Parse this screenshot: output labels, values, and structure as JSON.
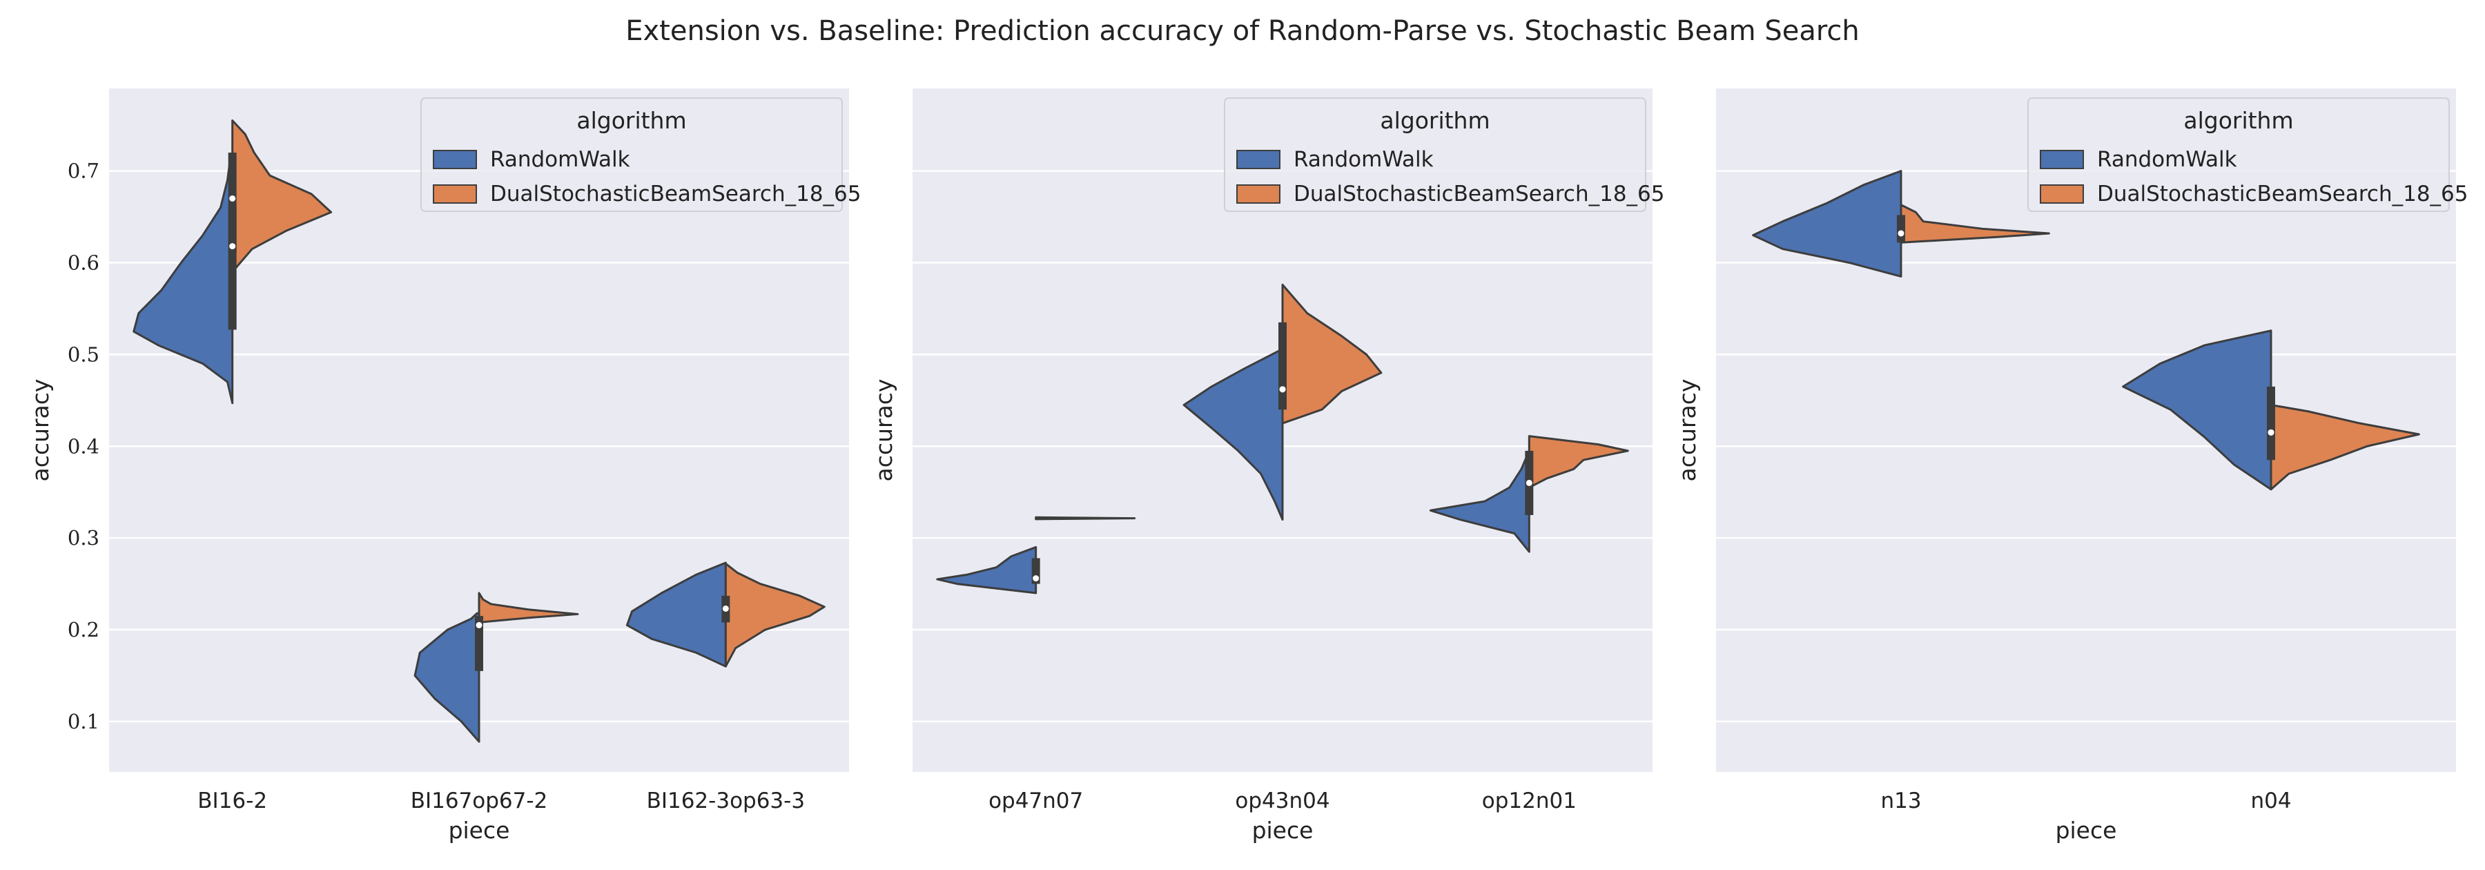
{
  "figure": {
    "title": "Extension vs. Baseline: Prediction accuracy of Random-Parse vs. Stochastic Beam Search"
  },
  "legend": {
    "title": "algorithm",
    "entries": [
      {
        "label": "RandomWalk",
        "color": "#4c72b0"
      },
      {
        "label": "DualStochasticBeamSearch_18_65",
        "color": "#dd8452"
      }
    ]
  },
  "colors": {
    "panel_bg": "#eaeaf2",
    "grid": "#ffffff",
    "outline": "#3d3d3d",
    "box": "#3d3d3d"
  },
  "chart_data": [
    {
      "type": "violin",
      "split": true,
      "xlabel": "piece",
      "ylabel": "accuracy",
      "ylim": [
        0.045,
        0.79
      ],
      "yticks": [
        0.1,
        0.2,
        0.3,
        0.4,
        0.5,
        0.6,
        0.7
      ],
      "categories": [
        "BI16-2",
        "BI167op67-2",
        "BI162-3op63-3"
      ],
      "series": [
        {
          "name": "RandomWalk",
          "violins": [
            {
              "profile": [
                [
                  0.447,
                  0
                ],
                [
                  0.47,
                  0.05
                ],
                [
                  0.49,
                  0.3
                ],
                [
                  0.51,
                  0.75
                ],
                [
                  0.525,
                  1.0
                ],
                [
                  0.545,
                  0.95
                ],
                [
                  0.57,
                  0.72
                ],
                [
                  0.6,
                  0.52
                ],
                [
                  0.63,
                  0.3
                ],
                [
                  0.66,
                  0.12
                ],
                [
                  0.69,
                  0.05
                ],
                [
                  0.715,
                  0.02
                ]
              ],
              "box": [
                0.527,
                0.66
              ],
              "median": 0.618
            },
            {
              "profile": [
                [
                  0.078,
                  0
                ],
                [
                  0.1,
                  0.18
                ],
                [
                  0.125,
                  0.45
                ],
                [
                  0.15,
                  0.65
                ],
                [
                  0.175,
                  0.6
                ],
                [
                  0.2,
                  0.32
                ],
                [
                  0.212,
                  0.08
                ],
                [
                  0.218,
                  0.02
                ]
              ],
              "box": [
                0.155,
                0.215
              ],
              "median": 0.205
            },
            {
              "profile": [
                [
                  0.16,
                  0
                ],
                [
                  0.175,
                  0.3
                ],
                [
                  0.19,
                  0.75
                ],
                [
                  0.205,
                  1.0
                ],
                [
                  0.22,
                  0.95
                ],
                [
                  0.24,
                  0.65
                ],
                [
                  0.26,
                  0.3
                ],
                [
                  0.273,
                  0
                ]
              ],
              "box": [
                0.208,
                0.237
              ],
              "median": 0.223
            }
          ]
        },
        {
          "name": "DualStochasticBeamSearch_18_65",
          "violins": [
            {
              "profile": [
                [
                  0.59,
                  0
                ],
                [
                  0.615,
                  0.2
                ],
                [
                  0.635,
                  0.55
                ],
                [
                  0.655,
                  1.0
                ],
                [
                  0.675,
                  0.8
                ],
                [
                  0.695,
                  0.38
                ],
                [
                  0.72,
                  0.22
                ],
                [
                  0.74,
                  0.13
                ],
                [
                  0.755,
                  0
                ]
              ],
              "box": [
                0.61,
                0.72
              ],
              "median": 0.67
            },
            {
              "profile": [
                [
                  0.208,
                  0
                ],
                [
                  0.213,
                  0.5
                ],
                [
                  0.217,
                  1.0
                ],
                [
                  0.222,
                  0.5
                ],
                [
                  0.228,
                  0.12
                ],
                [
                  0.233,
                  0.04
                ],
                [
                  0.24,
                  0
                ]
              ],
              "box": null,
              "median": null
            },
            {
              "profile": [
                [
                  0.16,
                  0
                ],
                [
                  0.18,
                  0.1
                ],
                [
                  0.2,
                  0.4
                ],
                [
                  0.215,
                  0.85
                ],
                [
                  0.225,
                  1.0
                ],
                [
                  0.237,
                  0.75
                ],
                [
                  0.25,
                  0.35
                ],
                [
                  0.262,
                  0.12
                ],
                [
                  0.272,
                  0
                ]
              ],
              "box": null,
              "median": null
            }
          ]
        }
      ]
    },
    {
      "type": "violin",
      "split": true,
      "xlabel": "piece",
      "ylabel": "accuracy",
      "ylim": [
        0.045,
        0.79
      ],
      "yticks": [
        0.1,
        0.2,
        0.3,
        0.4,
        0.5,
        0.6,
        0.7
      ],
      "categories": [
        "op47n07",
        "op43n04",
        "op12n01"
      ],
      "series": [
        {
          "name": "RandomWalk",
          "violins": [
            {
              "profile": [
                [
                  0.24,
                  0
                ],
                [
                  0.245,
                  0.4
                ],
                [
                  0.25,
                  0.8
                ],
                [
                  0.255,
                  1.0
                ],
                [
                  0.26,
                  0.7
                ],
                [
                  0.268,
                  0.4
                ],
                [
                  0.28,
                  0.25
                ],
                [
                  0.29,
                  0
                ]
              ],
              "box": [
                0.25,
                0.278
              ],
              "median": 0.256
            },
            {
              "profile": [
                [
                  0.32,
                  0
                ],
                [
                  0.34,
                  0.08
                ],
                [
                  0.37,
                  0.22
                ],
                [
                  0.395,
                  0.45
                ],
                [
                  0.42,
                  0.72
                ],
                [
                  0.445,
                  1.0
                ],
                [
                  0.465,
                  0.72
                ],
                [
                  0.485,
                  0.38
                ],
                [
                  0.506,
                  0
                ]
              ],
              "box": [
                0.44,
                0.48
              ],
              "median": 0.462
            },
            {
              "profile": [
                [
                  0.285,
                  0
                ],
                [
                  0.305,
                  0.15
                ],
                [
                  0.32,
                  0.7
                ],
                [
                  0.33,
                  1.0
                ],
                [
                  0.34,
                  0.45
                ],
                [
                  0.355,
                  0.2
                ],
                [
                  0.375,
                  0.08
                ],
                [
                  0.395,
                  0
                ]
              ],
              "box": [
                0.325,
                0.395
              ],
              "median": 0.36
            }
          ]
        },
        {
          "name": "DualStochasticBeamSearch_18_65",
          "violins": [
            {
              "profile": [
                [
                  0.3205,
                  0
                ],
                [
                  0.3215,
                  1.0
                ],
                [
                  0.3225,
                  0
                ]
              ],
              "box": null,
              "median": null
            },
            {
              "profile": [
                [
                  0.425,
                  0
                ],
                [
                  0.44,
                  0.4
                ],
                [
                  0.46,
                  0.6
                ],
                [
                  0.48,
                  1.0
                ],
                [
                  0.5,
                  0.85
                ],
                [
                  0.52,
                  0.6
                ],
                [
                  0.545,
                  0.25
                ],
                [
                  0.576,
                  0
                ]
              ],
              "box": [
                0.44,
                0.535
              ],
              "median": 0.462
            },
            {
              "profile": [
                [
                  0.355,
                  0
                ],
                [
                  0.365,
                  0.18
                ],
                [
                  0.375,
                  0.45
                ],
                [
                  0.385,
                  0.55
                ],
                [
                  0.395,
                  1.0
                ],
                [
                  0.402,
                  0.7
                ],
                [
                  0.411,
                  0
                ]
              ],
              "box": null,
              "median": null
            }
          ]
        }
      ]
    },
    {
      "type": "violin",
      "split": true,
      "xlabel": "piece",
      "ylabel": "accuracy",
      "ylim": [
        0.045,
        0.79
      ],
      "yticks": [
        0.1,
        0.2,
        0.3,
        0.4,
        0.5,
        0.6,
        0.7
      ],
      "categories": [
        "n13",
        "n04"
      ],
      "series": [
        {
          "name": "RandomWalk",
          "violins": [
            {
              "profile": [
                [
                  0.585,
                  0
                ],
                [
                  0.6,
                  0.35
                ],
                [
                  0.615,
                  0.8
                ],
                [
                  0.63,
                  1.0
                ],
                [
                  0.645,
                  0.8
                ],
                [
                  0.665,
                  0.5
                ],
                [
                  0.685,
                  0.25
                ],
                [
                  0.7,
                  0
                ]
              ],
              "box": [
                0.622,
                0.652
              ],
              "median": 0.632
            },
            {
              "profile": [
                [
                  0.353,
                  0
                ],
                [
                  0.38,
                  0.25
                ],
                [
                  0.41,
                  0.45
                ],
                [
                  0.44,
                  0.68
                ],
                [
                  0.465,
                  1.0
                ],
                [
                  0.49,
                  0.75
                ],
                [
                  0.51,
                  0.45
                ],
                [
                  0.526,
                  0
                ]
              ],
              "box": [
                0.385,
                0.465
              ],
              "median": 0.415
            }
          ]
        },
        {
          "name": "DualStochasticBeamSearch_18_65",
          "violins": [
            {
              "profile": [
                [
                  0.622,
                  0
                ],
                [
                  0.628,
                  0.65
                ],
                [
                  0.632,
                  1.0
                ],
                [
                  0.637,
                  0.55
                ],
                [
                  0.645,
                  0.15
                ],
                [
                  0.655,
                  0.1
                ],
                [
                  0.663,
                  0
                ]
              ],
              "box": null,
              "median": null
            },
            {
              "profile": [
                [
                  0.353,
                  0
                ],
                [
                  0.37,
                  0.12
                ],
                [
                  0.385,
                  0.4
                ],
                [
                  0.4,
                  0.65
                ],
                [
                  0.413,
                  1.0
                ],
                [
                  0.425,
                  0.6
                ],
                [
                  0.438,
                  0.25
                ],
                [
                  0.445,
                  0
                ]
              ],
              "box": [
                0.39,
                0.438
              ],
              "median": 0.415
            }
          ]
        }
      ]
    }
  ]
}
